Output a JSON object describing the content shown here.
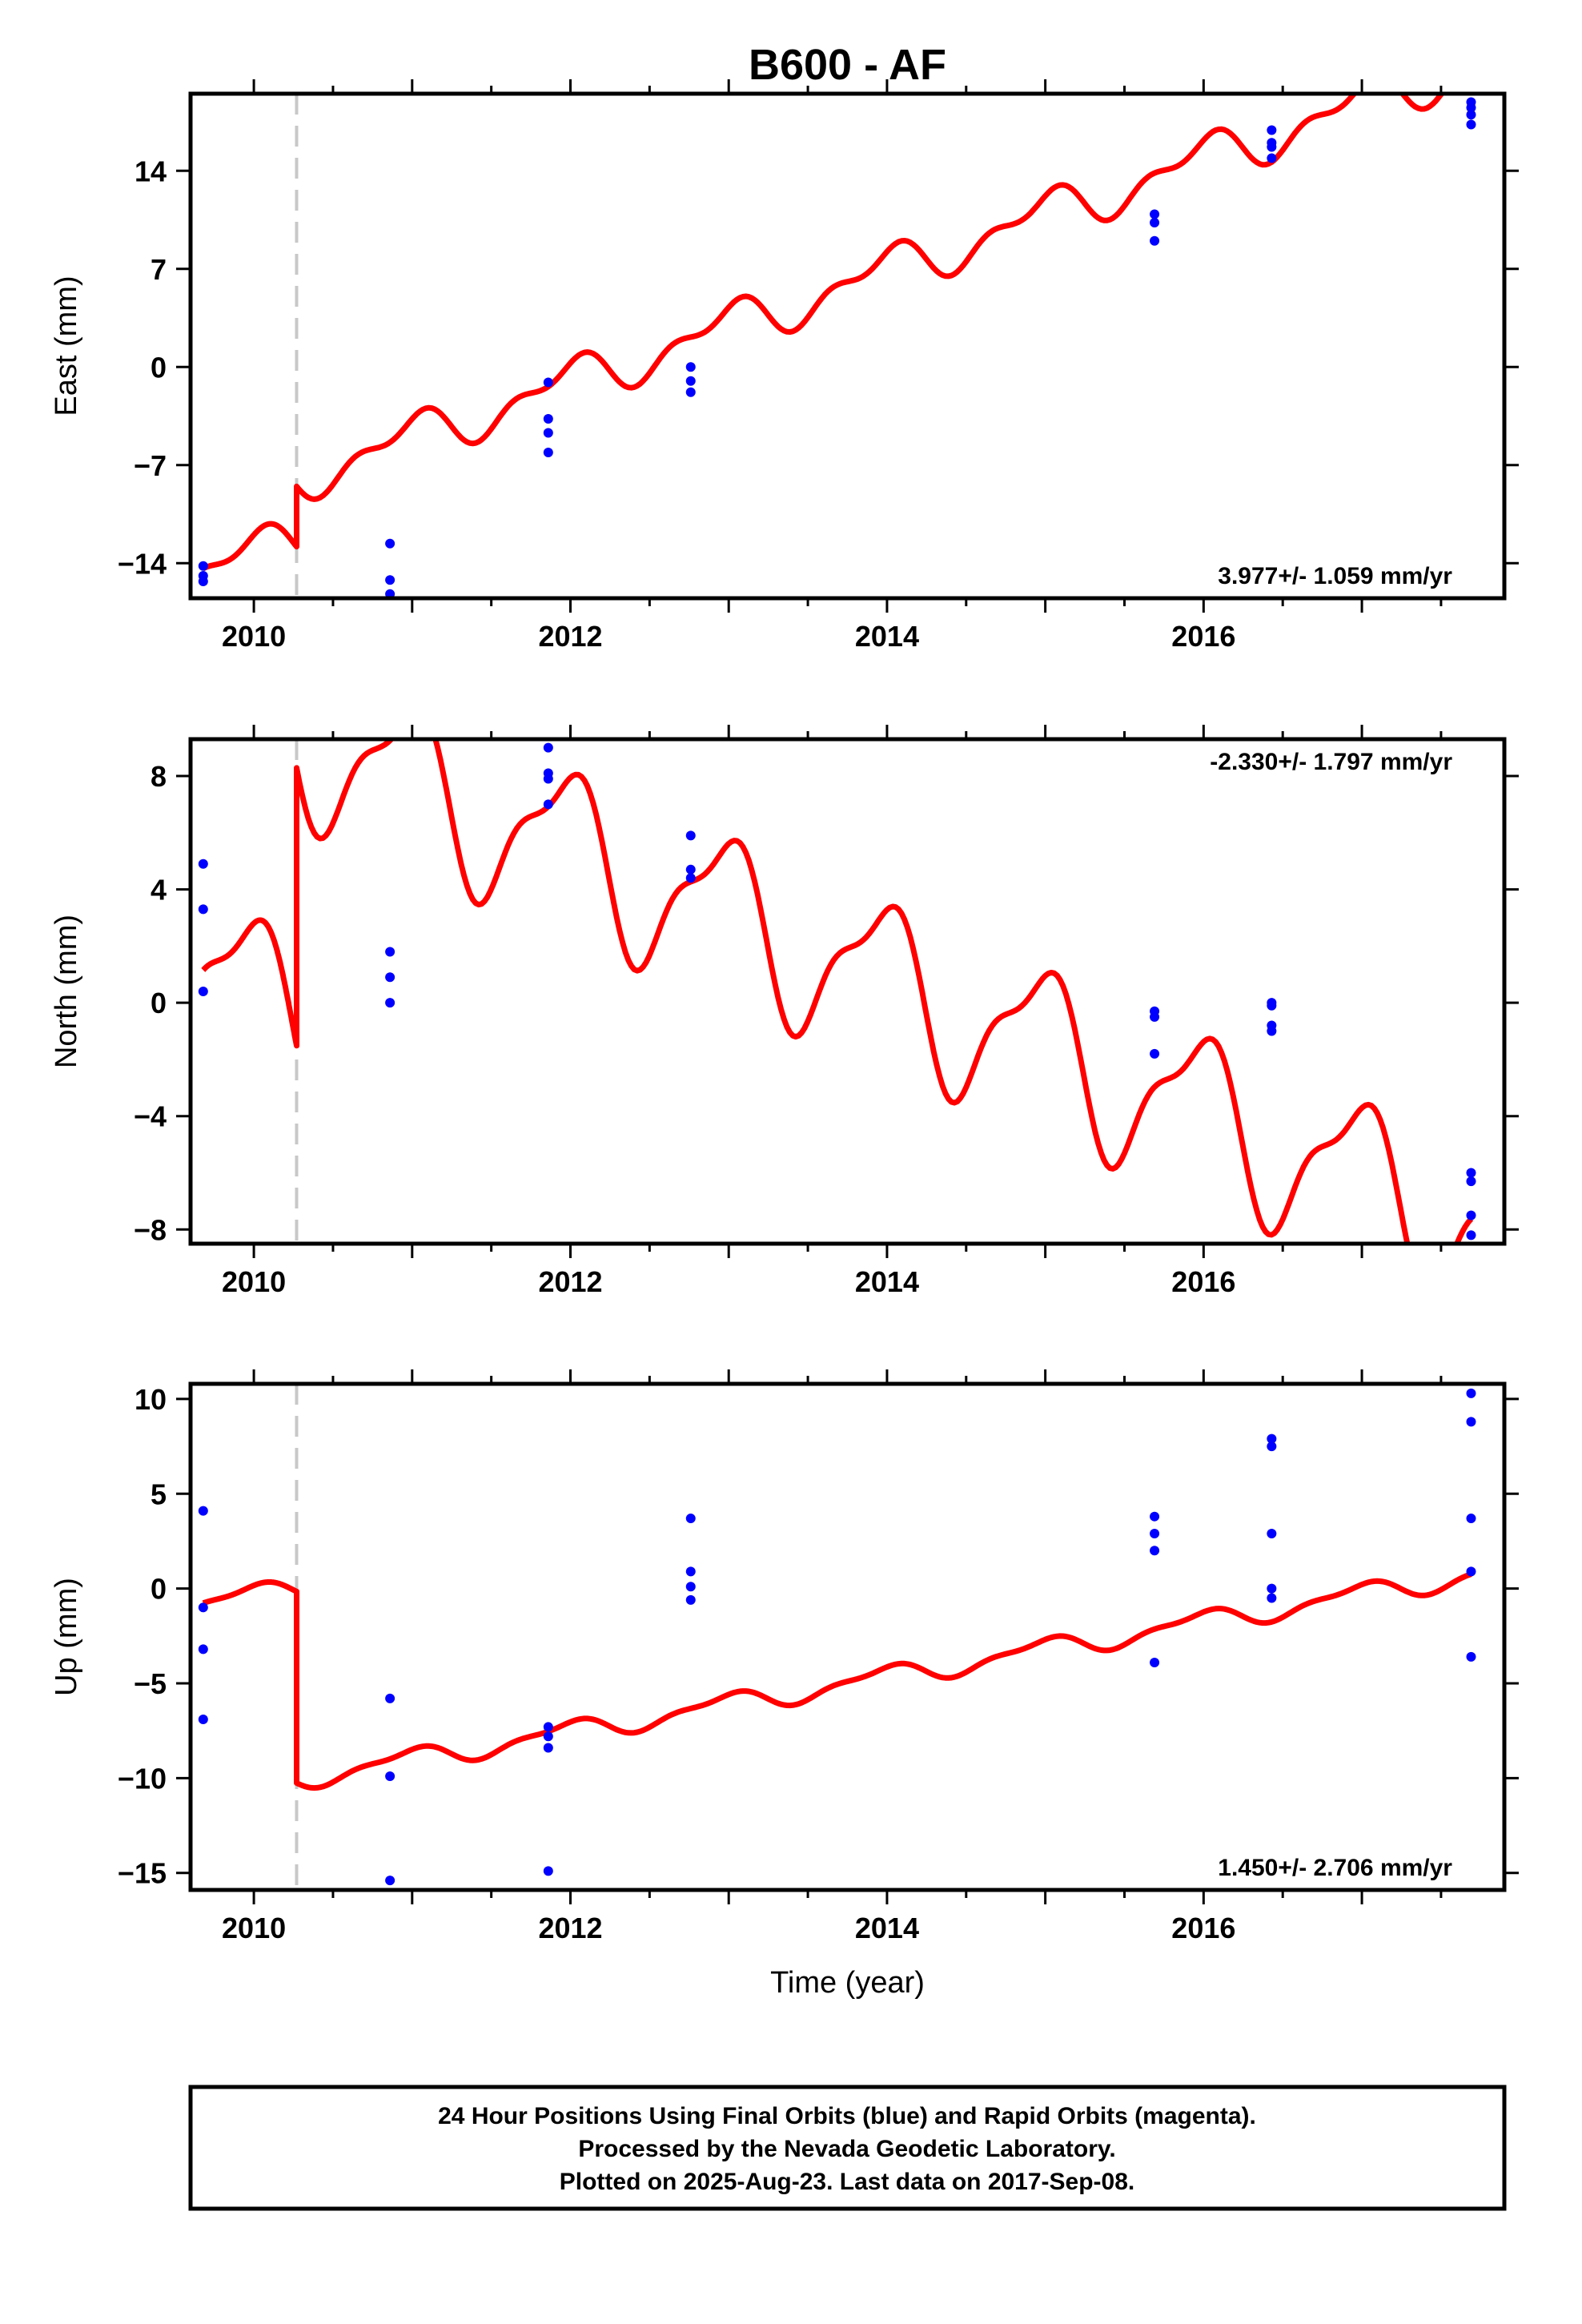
{
  "chart_data": [
    {
      "type": "scatter",
      "title": "B600 - AF",
      "xlabel": "",
      "ylabel": "East (mm)",
      "xlim": [
        2009.6,
        2017.9
      ],
      "ylim": [
        -16.5,
        19.5
      ],
      "xticks": [
        2010,
        2012,
        2014,
        2016
      ],
      "xtick_labels": [
        "2010",
        "2012",
        "2014",
        "2016"
      ],
      "yticks": [
        -14,
        -7,
        0,
        7,
        14
      ],
      "ytick_labels": [
        "−14",
        "−7",
        "0",
        "7",
        "14"
      ],
      "rate_label": "3.977+/- 1.059 mm/yr",
      "rate_position": "bottom-right",
      "step_line_year": 2010.27,
      "points": [
        {
          "x": 2009.68,
          "y": -14.2
        },
        {
          "x": 2009.68,
          "y": -14.9
        },
        {
          "x": 2009.68,
          "y": -15.3
        },
        {
          "x": 2010.86,
          "y": -12.6
        },
        {
          "x": 2010.86,
          "y": -15.2
        },
        {
          "x": 2010.86,
          "y": -16.2
        },
        {
          "x": 2011.86,
          "y": -1.1
        },
        {
          "x": 2011.86,
          "y": -3.7
        },
        {
          "x": 2011.86,
          "y": -4.7
        },
        {
          "x": 2011.86,
          "y": -6.1
        },
        {
          "x": 2012.76,
          "y": 0.0
        },
        {
          "x": 2012.76,
          "y": -1.0
        },
        {
          "x": 2012.76,
          "y": -1.8
        },
        {
          "x": 2015.69,
          "y": 10.9
        },
        {
          "x": 2015.69,
          "y": 10.3
        },
        {
          "x": 2015.69,
          "y": 9.0
        },
        {
          "x": 2016.43,
          "y": 16.9
        },
        {
          "x": 2016.43,
          "y": 16.0
        },
        {
          "x": 2016.43,
          "y": 15.7
        },
        {
          "x": 2016.43,
          "y": 14.9
        },
        {
          "x": 2017.69,
          "y": 18.9
        },
        {
          "x": 2017.69,
          "y": 18.5
        },
        {
          "x": 2017.69,
          "y": 18.0
        },
        {
          "x": 2017.69,
          "y": 17.3
        }
      ],
      "model": {
        "segments": [
          [
            2009.68,
            2010.27
          ],
          [
            2010.27,
            2017.69
          ]
        ],
        "offsets": [
          -14.6,
          -10.3
        ],
        "rate": 3.977,
        "annual_sin": -0.2,
        "annual_cos": 1.35,
        "semiannual_sin": 0.8,
        "semiannual_cos": 0.0
      }
    },
    {
      "type": "scatter",
      "title": "",
      "xlabel": "",
      "ylabel": "North (mm)",
      "xlim": [
        2009.6,
        2017.9
      ],
      "ylim": [
        -8.5,
        9.3
      ],
      "xticks": [
        2010,
        2012,
        2014,
        2016
      ],
      "xtick_labels": [
        "2010",
        "2012",
        "2014",
        "2016"
      ],
      "yticks": [
        -8,
        -4,
        0,
        4,
        8
      ],
      "ytick_labels": [
        "−8",
        "−4",
        "0",
        "4",
        "8"
      ],
      "rate_label": "-2.330+/- 1.797 mm/yr",
      "rate_position": "top-right",
      "step_line_year": 2010.27,
      "points": [
        {
          "x": 2009.68,
          "y": 4.9
        },
        {
          "x": 2009.68,
          "y": 3.3
        },
        {
          "x": 2009.68,
          "y": 0.4
        },
        {
          "x": 2010.86,
          "y": 1.8
        },
        {
          "x": 2010.86,
          "y": 0.9
        },
        {
          "x": 2010.86,
          "y": 0.0
        },
        {
          "x": 2011.86,
          "y": 9.0
        },
        {
          "x": 2011.86,
          "y": 8.1
        },
        {
          "x": 2011.86,
          "y": 7.9
        },
        {
          "x": 2011.86,
          "y": 7.0
        },
        {
          "x": 2012.76,
          "y": 5.9
        },
        {
          "x": 2012.76,
          "y": 4.7
        },
        {
          "x": 2012.76,
          "y": 4.4
        },
        {
          "x": 2015.69,
          "y": -0.3
        },
        {
          "x": 2015.69,
          "y": -0.5
        },
        {
          "x": 2015.69,
          "y": -1.8
        },
        {
          "x": 2016.43,
          "y": 0.0
        },
        {
          "x": 2016.43,
          "y": -0.1
        },
        {
          "x": 2016.43,
          "y": -0.8
        },
        {
          "x": 2016.43,
          "y": -1.0
        },
        {
          "x": 2017.69,
          "y": -6.0
        },
        {
          "x": 2017.69,
          "y": -6.3
        },
        {
          "x": 2017.69,
          "y": -7.5
        },
        {
          "x": 2017.69,
          "y": -8.2
        }
      ],
      "model": {
        "segments": [
          [
            2009.68,
            2010.27
          ],
          [
            2010.27,
            2017.69
          ]
        ],
        "offsets": [
          1.0,
          10.8
        ],
        "rate": -2.33,
        "annual_sin": -0.6,
        "annual_cos": 2.55,
        "semiannual_sin": 0.9,
        "semiannual_cos": 0.0
      }
    },
    {
      "type": "scatter",
      "title": "",
      "xlabel": "Time (year)",
      "ylabel": "Up (mm)",
      "xlim": [
        2009.6,
        2017.9
      ],
      "ylim": [
        -15.9,
        10.8
      ],
      "xticks": [
        2010,
        2012,
        2014,
        2016
      ],
      "xtick_labels": [
        "2010",
        "2012",
        "2014",
        "2016"
      ],
      "yticks": [
        -15,
        -10,
        -5,
        0,
        5,
        10
      ],
      "ytick_labels": [
        "−15",
        "−10",
        "−5",
        "0",
        "5",
        "10"
      ],
      "rate_label": "1.450+/- 2.706 mm/yr",
      "rate_position": "bottom-right",
      "step_line_year": 2010.27,
      "points": [
        {
          "x": 2009.68,
          "y": 4.1
        },
        {
          "x": 2009.68,
          "y": -1.0
        },
        {
          "x": 2009.68,
          "y": -3.2
        },
        {
          "x": 2009.68,
          "y": -6.9
        },
        {
          "x": 2010.86,
          "y": -5.8
        },
        {
          "x": 2010.86,
          "y": -9.9
        },
        {
          "x": 2010.86,
          "y": -15.4
        },
        {
          "x": 2011.86,
          "y": -7.3
        },
        {
          "x": 2011.86,
          "y": -7.8
        },
        {
          "x": 2011.86,
          "y": -8.4
        },
        {
          "x": 2011.86,
          "y": -14.9
        },
        {
          "x": 2012.76,
          "y": 3.7
        },
        {
          "x": 2012.76,
          "y": 0.9
        },
        {
          "x": 2012.76,
          "y": 0.1
        },
        {
          "x": 2012.76,
          "y": -0.6
        },
        {
          "x": 2015.69,
          "y": 3.8
        },
        {
          "x": 2015.69,
          "y": 2.9
        },
        {
          "x": 2015.69,
          "y": 2.0
        },
        {
          "x": 2015.69,
          "y": -3.9
        },
        {
          "x": 2016.43,
          "y": 7.9
        },
        {
          "x": 2016.43,
          "y": 7.5
        },
        {
          "x": 2016.43,
          "y": 2.9
        },
        {
          "x": 2016.43,
          "y": 0.0
        },
        {
          "x": 2016.43,
          "y": -0.5
        },
        {
          "x": 2017.69,
          "y": 10.3
        },
        {
          "x": 2017.69,
          "y": 8.8
        },
        {
          "x": 2017.69,
          "y": 3.7
        },
        {
          "x": 2017.69,
          "y": 0.9
        },
        {
          "x": 2017.69,
          "y": -3.6
        }
      ],
      "model": {
        "segments": [
          [
            2009.68,
            2010.27
          ],
          [
            2010.27,
            2017.69
          ]
        ],
        "offsets": [
          -0.8,
          -10.9
        ],
        "rate": 1.45,
        "annual_sin": -0.1,
        "annual_cos": 0.5,
        "semiannual_sin": 0.2,
        "semiannual_cos": 0.0
      }
    }
  ],
  "colors": {
    "data_points": "#0000ff",
    "model_line": "#ff0000",
    "step_line": "#c8c8c8",
    "axis": "#000000"
  },
  "footer": {
    "line1": "24 Hour Positions Using Final Orbits (blue) and Rapid Orbits (magenta).",
    "line2": "Processed by the Nevada Geodetic Laboratory.",
    "line3": "Plotted on 2025-Aug-23. Last data on 2017-Sep-08."
  }
}
